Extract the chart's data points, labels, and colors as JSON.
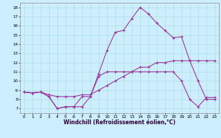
{
  "xlabel": "Windchill (Refroidissement éolien,°C)",
  "background_color": "#cceeff",
  "grid_color": "#aadddd",
  "line_color": "#993399",
  "xlim": [
    -0.5,
    23.5
  ],
  "ylim": [
    6.5,
    18.5
  ],
  "xticks": [
    0,
    1,
    2,
    3,
    4,
    5,
    6,
    7,
    8,
    9,
    10,
    11,
    12,
    13,
    14,
    15,
    16,
    17,
    18,
    19,
    20,
    21,
    22,
    23
  ],
  "yticks": [
    7,
    8,
    9,
    10,
    11,
    12,
    13,
    14,
    15,
    16,
    17,
    18
  ],
  "line1_x": [
    0,
    1,
    2,
    3,
    4,
    5,
    6,
    7,
    8,
    9,
    10,
    11,
    12,
    13,
    14,
    15,
    16,
    17,
    18,
    19,
    20,
    21,
    22,
    23
  ],
  "line1_y": [
    8.8,
    8.7,
    8.8,
    8.3,
    7.0,
    7.2,
    7.2,
    8.3,
    8.3,
    10.5,
    11.0,
    11.0,
    11.0,
    11.0,
    11.0,
    11.0,
    11.0,
    11.0,
    11.0,
    10.0,
    8.0,
    7.2,
    8.2,
    8.2
  ],
  "line2_x": [
    0,
    1,
    2,
    3,
    4,
    5,
    6,
    7,
    8,
    9,
    10,
    11,
    12,
    13,
    14,
    15,
    16,
    17,
    18,
    19,
    20,
    21,
    22,
    23
  ],
  "line2_y": [
    8.8,
    8.7,
    8.8,
    8.5,
    8.3,
    8.3,
    8.3,
    8.5,
    8.5,
    9.0,
    9.5,
    10.0,
    10.5,
    11.0,
    11.5,
    11.5,
    12.0,
    12.0,
    12.2,
    12.2,
    12.2,
    12.2,
    12.2,
    12.2
  ],
  "line3_x": [
    0,
    1,
    2,
    3,
    4,
    5,
    6,
    7,
    8,
    9,
    10,
    11,
    12,
    13,
    14,
    15,
    16,
    17,
    18,
    19,
    20,
    21,
    22,
    23
  ],
  "line3_y": [
    8.8,
    8.7,
    8.8,
    8.3,
    7.0,
    7.2,
    7.2,
    7.2,
    8.3,
    10.8,
    13.3,
    15.3,
    15.5,
    16.8,
    18.0,
    17.3,
    16.3,
    15.5,
    14.7,
    14.8,
    12.2,
    10.0,
    8.0,
    8.0
  ],
  "marker": "+",
  "markersize": 3,
  "linewidth": 0.8,
  "tick_fontsize": 4.5,
  "xlabel_fontsize": 5.5
}
